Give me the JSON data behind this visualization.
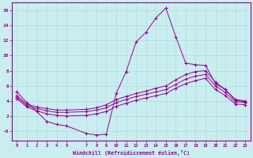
{
  "xlabel": "Windchill (Refroidissement éolien,°C)",
  "background_color": "#c8eef0",
  "line_color": "#990099",
  "grid_color": "#b0dde0",
  "xlim": [
    -0.5,
    23.5
  ],
  "ylim": [
    -1.2,
    17.0
  ],
  "xticks": [
    0,
    1,
    2,
    3,
    4,
    5,
    7,
    8,
    9,
    10,
    11,
    12,
    13,
    14,
    15,
    16,
    17,
    18,
    19,
    20,
    21,
    22,
    23
  ],
  "yticks": [
    0,
    2,
    4,
    6,
    8,
    10,
    12,
    14,
    16
  ],
  "ytick_labels": [
    "-0",
    "2",
    "4",
    "6",
    "8",
    "10",
    "12",
    "14",
    "16"
  ],
  "line1_x": [
    0,
    1,
    2,
    3,
    4,
    5,
    7,
    8,
    9,
    10,
    11,
    12,
    13,
    14,
    15,
    16,
    17,
    18,
    19,
    20,
    21,
    22,
    23
  ],
  "line1_y": [
    5.2,
    3.8,
    2.6,
    1.3,
    0.9,
    0.7,
    -0.3,
    -0.5,
    -0.4,
    5.0,
    7.9,
    11.8,
    13.1,
    15.0,
    16.3,
    12.5,
    9.0,
    8.8,
    8.7,
    6.3,
    5.5,
    4.1,
    3.9
  ],
  "line2_x": [
    0,
    1,
    2,
    3,
    4,
    5,
    7,
    8,
    9,
    10,
    11,
    12,
    13,
    14,
    15,
    16,
    17,
    18,
    19,
    20,
    21,
    22,
    23
  ],
  "line2_y": [
    4.7,
    3.6,
    3.2,
    3.0,
    2.8,
    2.8,
    2.9,
    3.1,
    3.5,
    4.2,
    4.6,
    5.0,
    5.3,
    5.7,
    6.0,
    6.8,
    7.5,
    7.9,
    8.0,
    6.5,
    5.5,
    4.2,
    4.0
  ],
  "line3_x": [
    0,
    1,
    2,
    3,
    4,
    5,
    7,
    8,
    9,
    10,
    11,
    12,
    13,
    14,
    15,
    16,
    17,
    18,
    19,
    20,
    21,
    22,
    23
  ],
  "line3_y": [
    4.5,
    3.4,
    3.0,
    2.7,
    2.5,
    2.5,
    2.6,
    2.8,
    3.1,
    3.8,
    4.2,
    4.6,
    4.9,
    5.2,
    5.5,
    6.2,
    6.9,
    7.3,
    7.5,
    6.0,
    5.1,
    3.9,
    3.8
  ],
  "line4_x": [
    0,
    1,
    2,
    3,
    4,
    5,
    7,
    8,
    9,
    10,
    11,
    12,
    13,
    14,
    15,
    16,
    17,
    18,
    19,
    20,
    21,
    22,
    23
  ],
  "line4_y": [
    4.3,
    3.2,
    2.7,
    2.3,
    2.1,
    2.0,
    2.1,
    2.3,
    2.6,
    3.3,
    3.7,
    4.1,
    4.4,
    4.7,
    5.0,
    5.7,
    6.3,
    6.7,
    7.0,
    5.5,
    4.7,
    3.6,
    3.5
  ]
}
